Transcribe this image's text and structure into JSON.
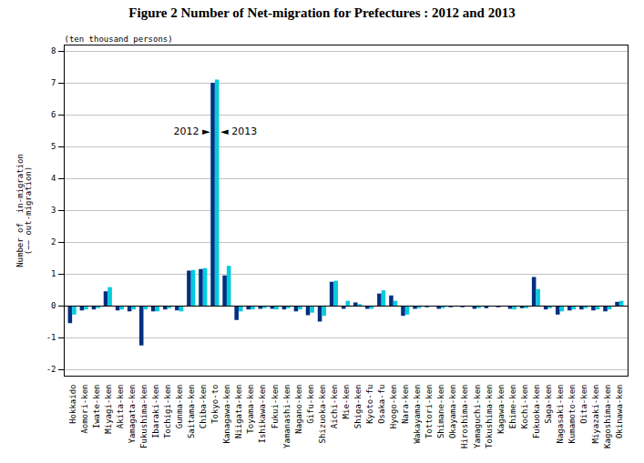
{
  "chart_data": {
    "type": "bar",
    "title": "Figure 2   Number of Net‑migration for Prefectures : 2012 and 2013",
    "ylabel": "Number of  in-migration\n(−− out-migration)",
    "unit_label": "(ten thousand persons)",
    "annotations": [
      "2012 ►",
      "◄ 2013"
    ],
    "categories": [
      "Hokkaido",
      "Aomori-ken",
      "Iwate-ken",
      "Miyagi-ken",
      "Akita-ken",
      "Yamagata-ken",
      "Fukushima-ken",
      "Ibaraki-ken",
      "Tochigi-ken",
      "Gunma-ken",
      "Saitama-ken",
      "Chiba-ken",
      "Tokyo-to",
      "Kanagawa-ken",
      "Niigata-ken",
      "Toyama-ken",
      "Ishikawa-ken",
      "Fukui-ken",
      "Yamanashi-ken",
      "Nagano-ken",
      "Gifu-ken",
      "Shizuoka-ken",
      "Aichi-ken",
      "Mie-ken",
      "Shiga-ken",
      "Kyoto-fu",
      "Osaka-fu",
      "Hyogo-ken",
      "Nara-ken",
      "Wakayama-ken",
      "Tottori-ken",
      "Shimane-ken",
      "Okayama-ken",
      "Hiroshima-ken",
      "Yamaguchi-ken",
      "Tokushima-ken",
      "Kagawa-ken",
      "Ehime-ken",
      "Kochi-ken",
      "Fukuoka-ken",
      "Saga-ken",
      "Nagasaki-ken",
      "Kumamoto-ken",
      "Oita-ken",
      "Miyazaki-ken",
      "Kagoshima-ken",
      "Okinawa-ken"
    ],
    "series": [
      {
        "name": "2012",
        "color": "#003080",
        "values": [
          -0.55,
          -0.15,
          -0.12,
          0.45,
          -0.15,
          -0.18,
          -1.25,
          -0.18,
          -0.12,
          -0.15,
          1.1,
          1.15,
          7.0,
          0.95,
          -0.45,
          -0.12,
          -0.1,
          -0.1,
          -0.12,
          -0.18,
          -0.3,
          -0.5,
          0.75,
          -0.1,
          0.1,
          -0.1,
          0.38,
          0.32,
          -0.32,
          -0.1,
          -0.05,
          -0.1,
          -0.05,
          -0.05,
          -0.1,
          -0.08,
          -0.05,
          -0.1,
          -0.08,
          0.9,
          -0.12,
          -0.28,
          -0.15,
          -0.12,
          -0.15,
          -0.18,
          0.12
        ]
      },
      {
        "name": "2013",
        "color": "#00CCDD",
        "values": [
          -0.28,
          -0.12,
          -0.08,
          0.58,
          -0.12,
          -0.12,
          -0.12,
          -0.18,
          -0.08,
          -0.18,
          1.12,
          1.18,
          7.1,
          1.25,
          -0.18,
          -0.12,
          -0.08,
          -0.12,
          -0.08,
          -0.12,
          -0.22,
          -0.32,
          0.78,
          0.15,
          0.05,
          -0.1,
          0.48,
          0.15,
          -0.28,
          -0.08,
          -0.03,
          -0.08,
          -0.03,
          -0.03,
          -0.08,
          -0.03,
          -0.03,
          -0.12,
          -0.08,
          0.52,
          -0.08,
          -0.18,
          -0.12,
          -0.08,
          -0.12,
          -0.12,
          0.15
        ]
      }
    ],
    "ylim": [
      -2.2,
      8.2
    ],
    "yticks": [
      -2,
      -1,
      0,
      1,
      2,
      3,
      4,
      5,
      6,
      7,
      8
    ],
    "grid": true
  }
}
